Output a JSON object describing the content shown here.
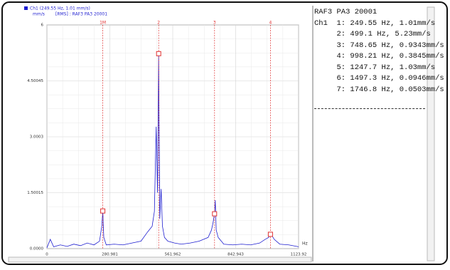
{
  "chart_data": {
    "type": "line",
    "subtitle": "[RMS] : RAF3 PA3 20001",
    "y_label": "mm/s",
    "x_label": "Hz",
    "series": [
      {
        "name": "Ch1 (249.55 Hz, 1.01 mm/s)",
        "color": "#1f1fd0",
        "x": [
          0,
          15,
          30,
          60,
          90,
          120,
          150,
          180,
          210,
          235,
          245,
          249.55,
          254,
          265,
          300,
          340,
          380,
          420,
          450,
          470,
          480,
          488,
          494,
          499.1,
          504,
          510,
          516,
          525,
          540,
          570,
          600,
          640,
          680,
          720,
          735,
          742,
          748.65,
          752,
          756,
          765,
          790,
          830,
          870,
          910,
          950,
          975,
          990,
          998.21,
          1005,
          1015,
          1040,
          1080,
          1123.92
        ],
        "y": [
          0.02,
          0.25,
          0.05,
          0.1,
          0.06,
          0.12,
          0.08,
          0.15,
          0.1,
          0.2,
          0.6,
          1.01,
          0.3,
          0.1,
          0.12,
          0.1,
          0.15,
          0.2,
          0.45,
          0.6,
          1.0,
          3.27,
          1.5,
          5.23,
          0.8,
          1.6,
          0.6,
          0.3,
          0.2,
          0.15,
          0.12,
          0.15,
          0.2,
          0.3,
          0.5,
          0.7,
          0.9343,
          1.3,
          0.5,
          0.3,
          0.12,
          0.1,
          0.12,
          0.1,
          0.15,
          0.25,
          0.3,
          0.3845,
          0.35,
          0.25,
          0.12,
          0.1,
          0.05
        ]
      }
    ],
    "cursors": {
      "color": "#e03030",
      "labels": [
        "1M",
        "2",
        "3",
        "4"
      ],
      "x": [
        249.55,
        499.1,
        748.65,
        998.21
      ],
      "y": [
        1.01,
        5.23,
        0.9343,
        0.3845
      ]
    },
    "xlim": [
      0,
      1123.92
    ],
    "xticks": [
      0,
      280.981,
      561.962,
      842.943,
      1123.92
    ],
    "ylim": [
      0,
      6.0006
    ],
    "yticks": [
      {
        "value": 0,
        "label": "0.0000"
      },
      1.50015,
      3.0003,
      4.50045,
      {
        "value": 6.0006,
        "label": "6"
      }
    ],
    "grid": true,
    "minor_grid_divisions": 4
  },
  "panel": {
    "title": "RAF3 PA3 20001",
    "lines": [
      "Ch1  1: 249.55 Hz, 1.01mm/s",
      "     2: 499.1 Hz, 5.23mm/s",
      "     3: 748.65 Hz, 0.9343mm/s",
      "     4: 998.21 Hz, 0.3845mm/s",
      "     5: 1247.7 Hz, 1.03mm/s",
      "     6: 1497.3 Hz, 0.0946mm/s",
      "     7: 1746.8 Hz, 0.0503mm/s"
    ]
  }
}
